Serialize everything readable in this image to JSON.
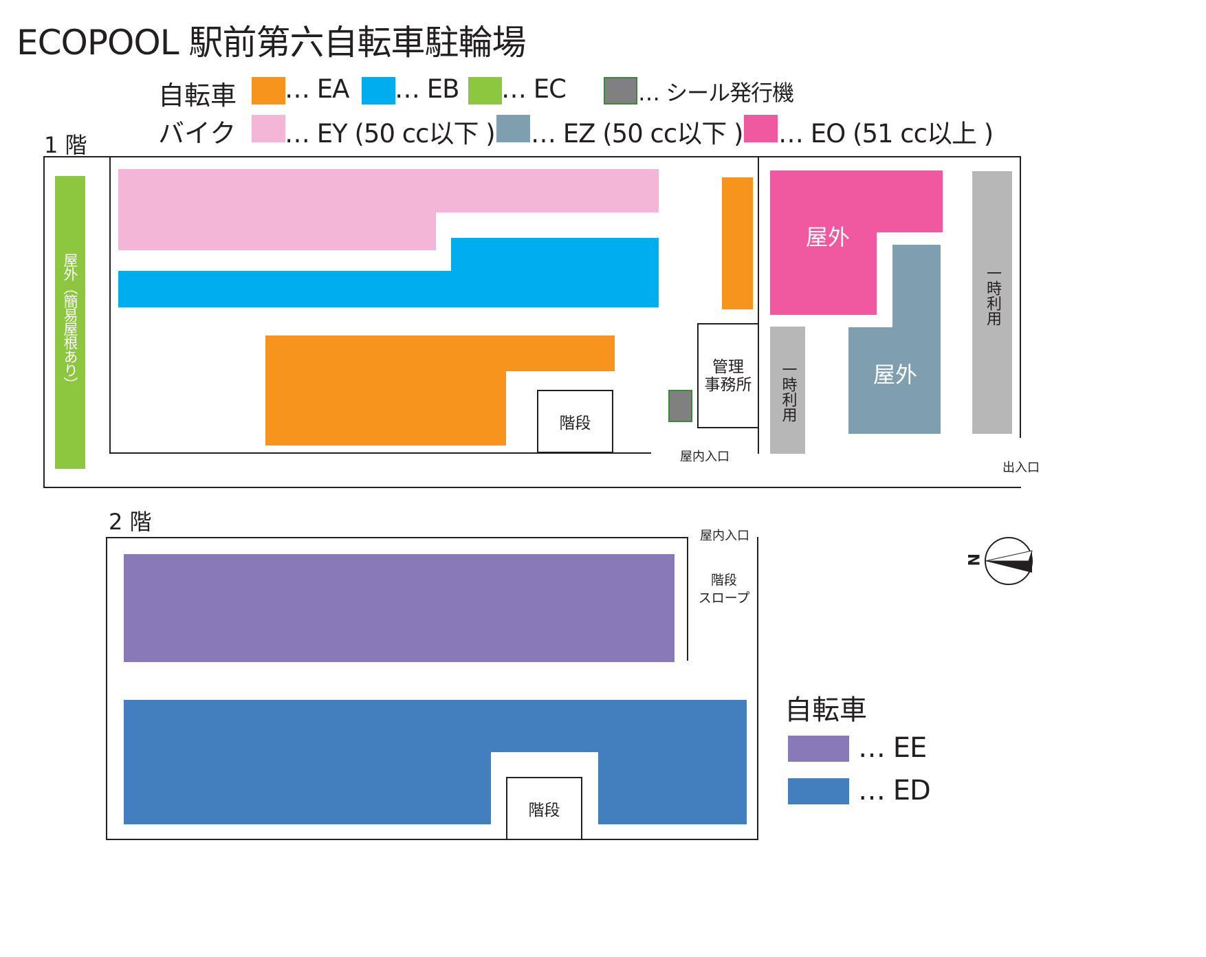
{
  "title": "ECOPOOL 駅前第六自転車駐輪場",
  "colors": {
    "EA": "#f7941e",
    "EB": "#00aeef",
    "EC": "#8dc63f",
    "seal": "#808080",
    "EY": "#f4b6d6",
    "EZ": "#7f9fb0",
    "EO": "#f058a0",
    "EE": "#8a79b8",
    "ED": "#437fbf",
    "temp": "#b7b7b7"
  },
  "legend": {
    "bicycle_head": "自転車",
    "bike_head": "バイク",
    "EA": "… EA",
    "EB": "… EB",
    "EC": "… EC",
    "seal": "… シール発行機",
    "EY": "… EY (50 cc以下 )",
    "EZ": "… EZ (50 cc以下 )",
    "EO": "… EO (51 cc以上 )"
  },
  "floor1": {
    "label": "1 階",
    "outdoor_covered": "屋外（簡易屋根あり）",
    "office": "管理\n事務所",
    "stairs": "階段",
    "indoor_entrance": "屋内入口",
    "entrance": "出入口",
    "outdoor_eo": "屋外",
    "outdoor_ez": "屋外",
    "temp_use_left": "一時利用",
    "temp_use_right": "一時利用"
  },
  "floor2": {
    "label": "2 階",
    "indoor_entrance": "屋内入口",
    "stairs_slope": "階段\nスロープ",
    "stairs": "階段",
    "legend_head": "自転車",
    "EE": "… EE",
    "ED": "… ED"
  },
  "compass": {
    "letter": "N"
  }
}
